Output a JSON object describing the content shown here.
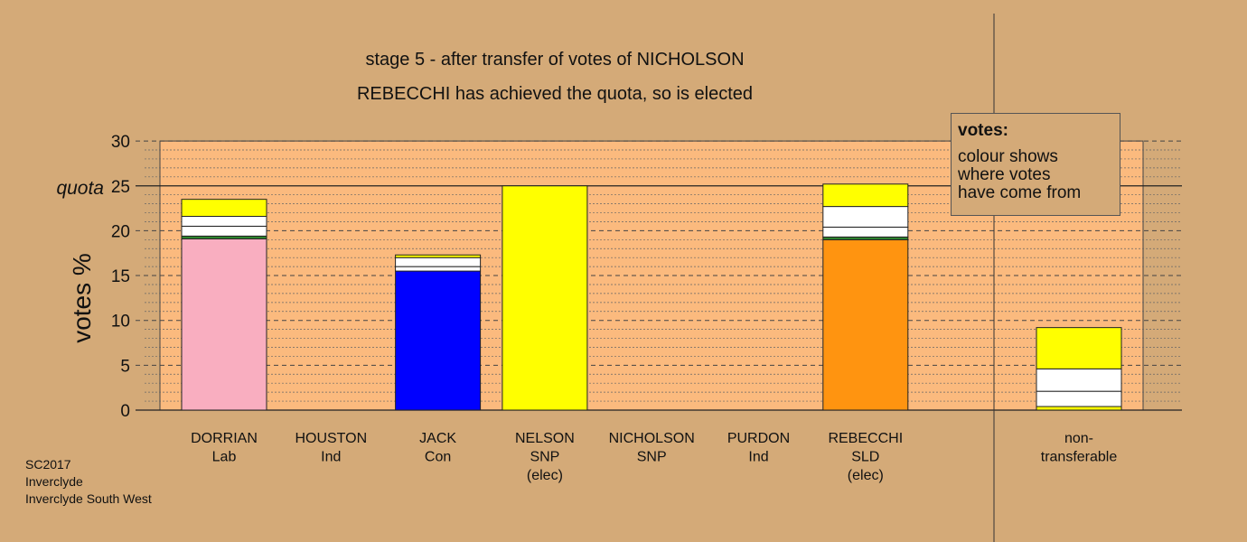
{
  "chart_data": {
    "type": "bar",
    "title": "stage 5 - after transfer of votes of NICHOLSON",
    "subtitle": "REBECCHI has achieved the quota, so is elected",
    "ylabel": "votes %",
    "ylim": [
      0,
      30
    ],
    "yticks": [
      "0",
      "5",
      "10",
      "15",
      "20",
      "25",
      "30"
    ],
    "quota_label": "quota",
    "quota": 25,
    "grid": "dashed horizontal",
    "legend_placement": "top-right",
    "candidates": [
      {
        "name": "DORRIAN",
        "party": "Lab",
        "note": "",
        "segments": [
          {
            "value": 19.1,
            "color": "#f9aec0"
          },
          {
            "value": 0.3,
            "color": "#2e8b2e"
          },
          {
            "value": 1.1,
            "color": "#ffffff"
          },
          {
            "value": 1.1,
            "color": "#ffffff"
          },
          {
            "value": 1.9,
            "color": "#ffff00"
          }
        ],
        "total": 23.5
      },
      {
        "name": "HOUSTON",
        "party": "Ind",
        "note": "",
        "segments": [],
        "total": 0
      },
      {
        "name": "JACK",
        "party": "Con",
        "note": "",
        "segments": [
          {
            "value": 15.5,
            "color": "#0000ff"
          },
          {
            "value": 0.5,
            "color": "#ffffff"
          },
          {
            "value": 1.0,
            "color": "#ffffff"
          },
          {
            "value": 0.3,
            "color": "#ffff00"
          }
        ],
        "total": 17.3
      },
      {
        "name": "NELSON",
        "party": "SNP",
        "note": "(elec)",
        "segments": [
          {
            "value": 25.0,
            "color": "#ffff00"
          }
        ],
        "total": 25.0
      },
      {
        "name": "NICHOLSON",
        "party": "SNP",
        "note": "",
        "segments": [],
        "total": 0
      },
      {
        "name": "PURDON",
        "party": "Ind",
        "note": "",
        "segments": [],
        "total": 0
      },
      {
        "name": "REBECCHI",
        "party": "SLD",
        "note": "(elec)",
        "segments": [
          {
            "value": 19.0,
            "color": "#ff9410"
          },
          {
            "value": 0.3,
            "color": "#2e8b2e"
          },
          {
            "value": 1.1,
            "color": "#ffffff"
          },
          {
            "value": 2.3,
            "color": "#ffffff"
          },
          {
            "value": 2.5,
            "color": "#ffff00"
          }
        ],
        "total": 25.2
      }
    ],
    "nontransferable": {
      "label_line1": "non-",
      "label_line2": "transferable",
      "segments": [
        {
          "value": 0.4,
          "color": "#ffff00"
        },
        {
          "value": 1.7,
          "color": "#ffffff"
        },
        {
          "value": 2.5,
          "color": "#ffffff"
        },
        {
          "value": 4.6,
          "color": "#ffff00"
        }
      ],
      "total": 9.2
    }
  },
  "legend": {
    "title": "votes:",
    "line1": "colour shows",
    "line2": "where votes",
    "line3": "have come from"
  },
  "footer": {
    "line1": "SC2017",
    "line2": "Inverclyde",
    "line3": "Inverclyde South West"
  },
  "colors": {
    "background": "#d4aa78",
    "plot_area": "#fbba7e",
    "grid": "#555555"
  }
}
